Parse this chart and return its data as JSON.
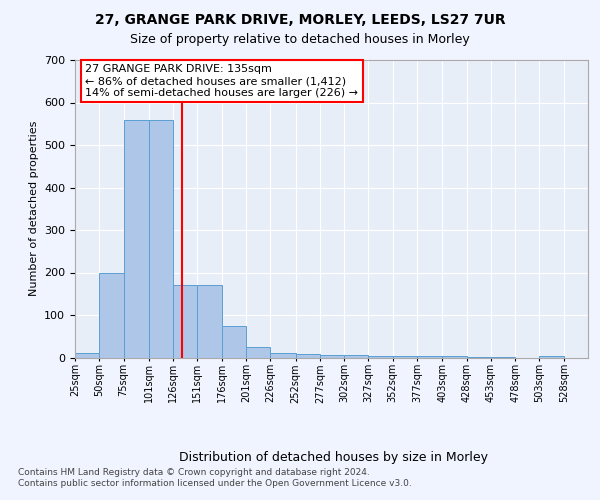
{
  "title1": "27, GRANGE PARK DRIVE, MORLEY, LEEDS, LS27 7UR",
  "title2": "Size of property relative to detached houses in Morley",
  "xlabel": "Distribution of detached houses by size in Morley",
  "ylabel": "Number of detached properties",
  "footer": "Contains HM Land Registry data © Crown copyright and database right 2024.\nContains public sector information licensed under the Open Government Licence v3.0.",
  "bin_labels": [
    "25sqm",
    "50sqm",
    "75sqm",
    "101sqm",
    "126sqm",
    "151sqm",
    "176sqm",
    "201sqm",
    "226sqm",
    "252sqm",
    "277sqm",
    "302sqm",
    "327sqm",
    "352sqm",
    "377sqm",
    "403sqm",
    "428sqm",
    "453sqm",
    "478sqm",
    "503sqm",
    "528sqm"
  ],
  "bin_edges": [
    25,
    50,
    75,
    101,
    126,
    151,
    176,
    201,
    226,
    252,
    277,
    302,
    327,
    352,
    377,
    403,
    428,
    453,
    478,
    503,
    528,
    553
  ],
  "bar_values": [
    10,
    200,
    560,
    560,
    170,
    170,
    75,
    25,
    10,
    8,
    5,
    5,
    3,
    3,
    3,
    3,
    2,
    2,
    0,
    3,
    0
  ],
  "bar_color": "#aec6e8",
  "bar_edge_color": "#5a9fd4",
  "red_line_x": 135,
  "ylim": [
    0,
    700
  ],
  "yticks": [
    0,
    100,
    200,
    300,
    400,
    500,
    600,
    700
  ],
  "annotation_title": "27 GRANGE PARK DRIVE: 135sqm",
  "annotation_line1": "← 86% of detached houses are smaller (1,412)",
  "annotation_line2": "14% of semi-detached houses are larger (226) →",
  "background_color": "#f0f4ff",
  "plot_bg_color": "#e8eef8",
  "grid_color": "#ffffff"
}
